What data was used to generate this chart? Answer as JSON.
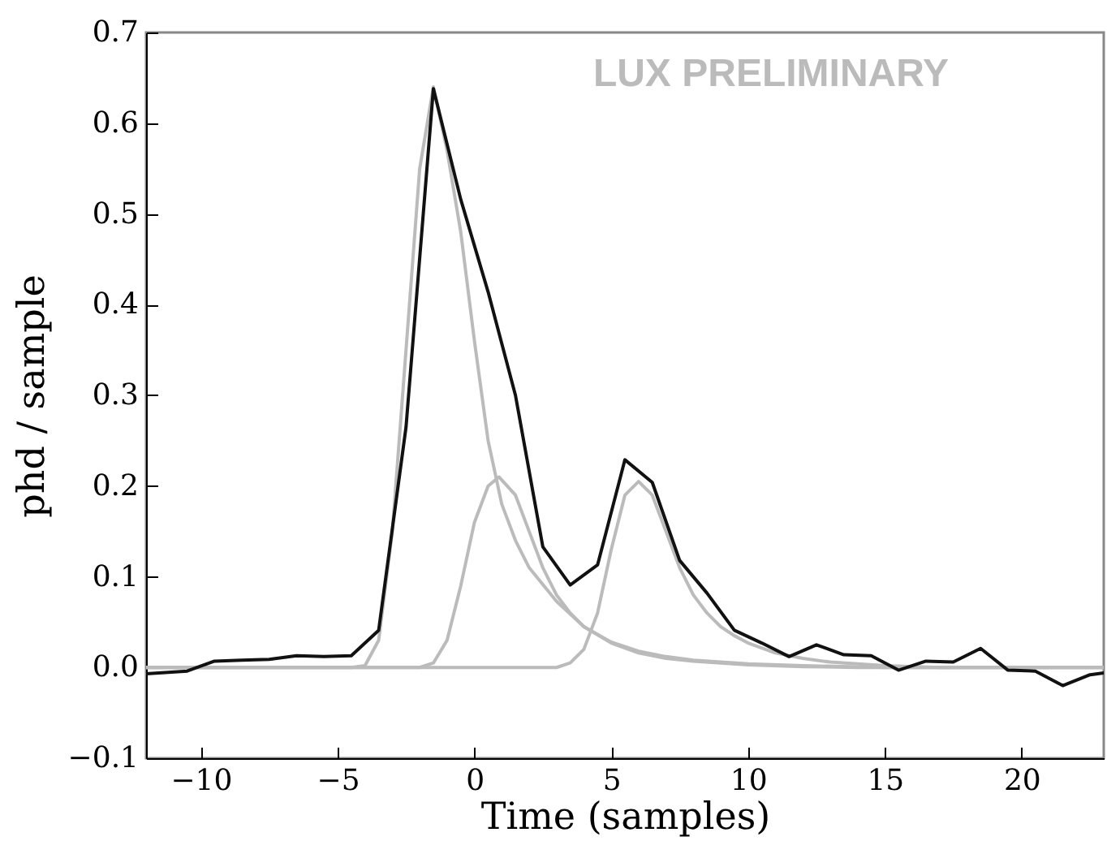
{
  "chart_data": {
    "type": "line",
    "xlabel": "Time (samples)",
    "ylabel": "phd / sample",
    "annotations": [
      "LUX PRELIMINARY"
    ],
    "xlim": [
      -12,
      23
    ],
    "ylim": [
      -0.1,
      0.7
    ],
    "xticks": [
      {
        "value": -10,
        "label": "−10"
      },
      {
        "value": -5,
        "label": "−5"
      },
      0,
      5,
      10,
      15,
      20
    ],
    "yticks": [
      {
        "value": -0.1,
        "label": "−0.1"
      },
      {
        "value": 0,
        "label": "0.0"
      },
      0.1,
      0.2,
      0.3,
      0.4,
      0.5,
      0.6,
      0.7
    ],
    "grid": false,
    "line_style": "solid",
    "marker": "none",
    "series": [
      {
        "color": "#bbbbbb",
        "x": [
          -12,
          -4.5,
          -4,
          -3.5,
          -3,
          -2.5,
          -2,
          -1.5,
          -1,
          -0.5,
          0,
          0.5,
          1,
          1.5,
          2,
          3,
          4,
          5,
          6,
          7,
          8,
          10,
          12,
          14,
          23
        ],
        "values": [
          0,
          0,
          0.002,
          0.03,
          0.15,
          0.35,
          0.55,
          0.64,
          0.57,
          0.48,
          0.36,
          0.25,
          0.18,
          0.14,
          0.11,
          0.073,
          0.045,
          0.027,
          0.016,
          0.01,
          0.007,
          0.003,
          0.001,
          0,
          0
        ]
      },
      {
        "color": "#bbbbbb",
        "x": [
          -12,
          -2,
          -1.5,
          -1,
          -0.5,
          0,
          0.5,
          0.9,
          1.5,
          2,
          2.5,
          3,
          3.5,
          4,
          5,
          6,
          7,
          8,
          10,
          12,
          15,
          23
        ],
        "values": [
          0,
          0,
          0.005,
          0.03,
          0.09,
          0.16,
          0.2,
          0.21,
          0.19,
          0.15,
          0.11,
          0.08,
          0.06,
          0.045,
          0.028,
          0.018,
          0.012,
          0.008,
          0.004,
          0.002,
          0,
          0
        ]
      },
      {
        "color": "#bbbbbb",
        "x": [
          -12,
          3,
          3.5,
          4,
          4.5,
          5,
          5.5,
          6,
          6.5,
          7,
          7.5,
          8,
          8.5,
          9,
          9.5,
          10,
          11,
          12,
          13,
          15,
          17,
          23
        ],
        "values": [
          0,
          0,
          0.005,
          0.02,
          0.06,
          0.13,
          0.19,
          0.205,
          0.19,
          0.15,
          0.11,
          0.08,
          0.06,
          0.045,
          0.035,
          0.027,
          0.016,
          0.01,
          0.006,
          0.002,
          0,
          0
        ]
      },
      {
        "color": "#111111",
        "x": [
          -12,
          -10.5,
          -9.5,
          -8.5,
          -7.5,
          -6.5,
          -5.5,
          -4.5,
          -3.5,
          -2.5,
          -1.5,
          -0.5,
          0.5,
          1.5,
          2.5,
          3.5,
          4.5,
          5.5,
          6.5,
          7.5,
          8.5,
          9.5,
          10.5,
          11.5,
          12.5,
          13.5,
          14.5,
          15.5,
          16.5,
          17.5,
          18.5,
          19.5,
          20.5,
          21.5,
          22.5,
          23
        ],
        "values": [
          -0.007,
          -0.004,
          0.007,
          0.008,
          0.009,
          0.013,
          0.012,
          0.013,
          0.041,
          0.265,
          0.638,
          0.516,
          0.414,
          0.3,
          0.133,
          0.091,
          0.113,
          0.229,
          0.204,
          0.118,
          0.082,
          0.041,
          0.027,
          0.012,
          0.025,
          0.014,
          0.013,
          -0.003,
          0.007,
          0.006,
          0.021,
          -0.003,
          -0.004,
          -0.02,
          -0.008,
          -0.006
        ]
      }
    ]
  }
}
